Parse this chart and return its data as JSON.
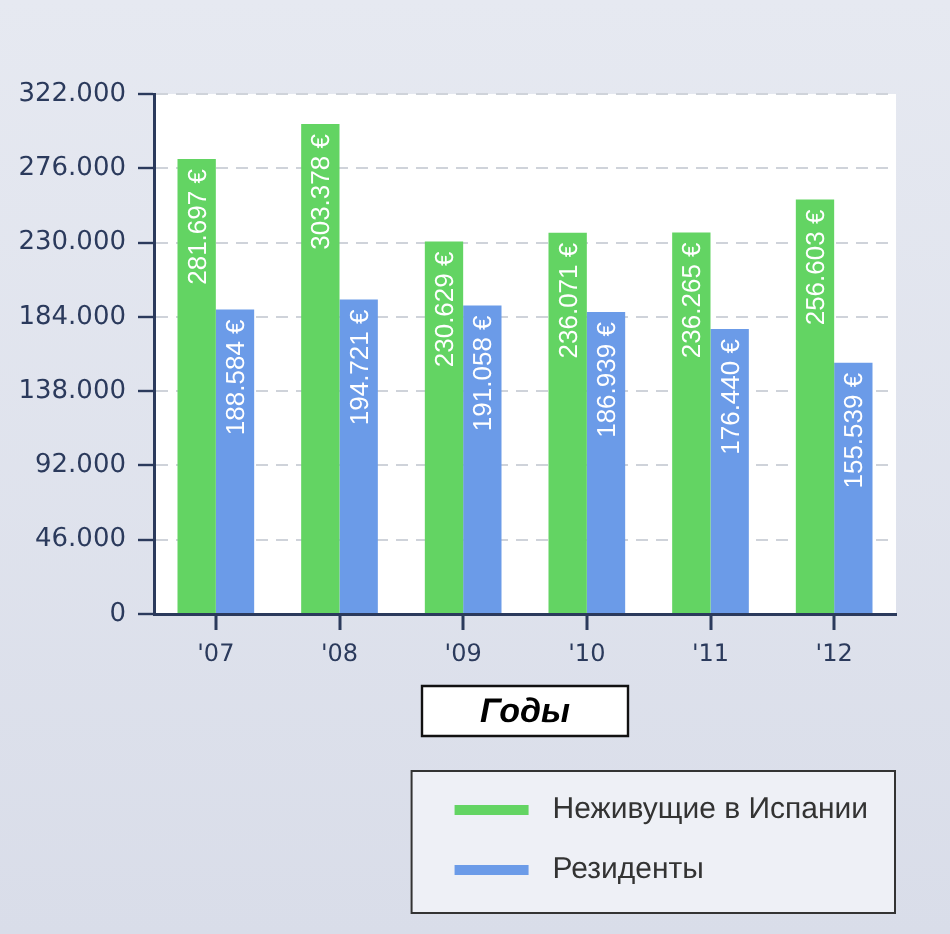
{
  "chart_data": {
    "type": "bar",
    "xlabel": "Годы",
    "categories": [
      "'07",
      "'08",
      "'09",
      "'10",
      "'11",
      "'12"
    ],
    "series": [
      {
        "name": "Неживущие в Испании",
        "color": "#63d463",
        "values": [
          281697,
          303378,
          230629,
          236071,
          236265,
          256603
        ],
        "value_labels": [
          "281.697 €",
          "303.378 €",
          "230.629 €",
          "236.071 €",
          "236.265 €",
          "256.603 €"
        ]
      },
      {
        "name": "Резиденты",
        "color": "#6b9be8",
        "values": [
          188584,
          194721,
          191058,
          186939,
          176440,
          155539
        ],
        "value_labels": [
          "188.584 €",
          "194.721 €",
          "191.058 €",
          "186.939 €",
          "176.440 €",
          "155.539 €"
        ]
      }
    ],
    "ylim": [
      0,
      322000
    ],
    "yticks": [
      0,
      {
        "value": 46000,
        "label": "46.000"
      },
      {
        "value": 92000,
        "label": "92.000"
      },
      {
        "value": 138000,
        "label": "138.000"
      },
      {
        "value": 184000,
        "label": "184.000"
      },
      {
        "value": 230000,
        "label": "230.000"
      },
      {
        "value": 276000,
        "label": "276.000"
      },
      {
        "value": 322000,
        "label": "322.000"
      }
    ],
    "grid": "y",
    "legend": "bottom right"
  }
}
